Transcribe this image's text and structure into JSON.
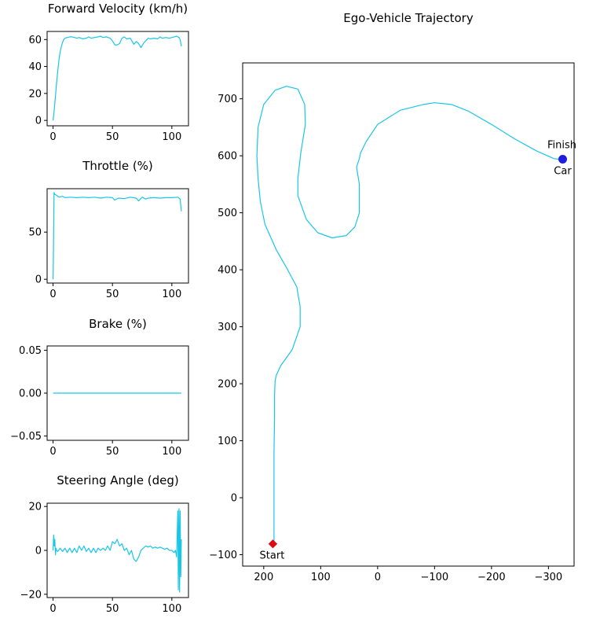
{
  "chart_data": [
    {
      "type": "line",
      "title": "Forward Velocity (km/h)",
      "color": "#1ac6e6",
      "xlim": [
        -5,
        114
      ],
      "ylim": [
        -4,
        66
      ],
      "xticks": [
        0,
        50,
        100
      ],
      "yticks": [
        0,
        20,
        40,
        60
      ],
      "ytick_labels": [
        "0",
        "20",
        "40",
        "60"
      ],
      "x": [
        0,
        1,
        2,
        3,
        4,
        5,
        6,
        7,
        8,
        9,
        10,
        12,
        14,
        16,
        18,
        20,
        22,
        25,
        28,
        30,
        32,
        35,
        38,
        40,
        42,
        45,
        48,
        50,
        52,
        54,
        56,
        58,
        60,
        62,
        65,
        68,
        70,
        72,
        74,
        76,
        78,
        80,
        82,
        85,
        88,
        90,
        92,
        95,
        98,
        100,
        102,
        104,
        106,
        107,
        108
      ],
      "values": [
        0,
        8,
        18,
        28,
        37,
        45,
        51,
        55,
        58,
        60,
        61,
        61.5,
        62,
        62,
        61.5,
        61,
        61.5,
        60.5,
        61,
        62,
        61,
        61.5,
        62,
        62.5,
        61.5,
        62,
        61,
        59,
        56,
        56,
        57,
        61,
        62,
        60.5,
        61,
        56.5,
        58.5,
        57,
        54,
        57,
        59,
        61,
        60.5,
        61,
        60.5,
        62,
        61,
        61.5,
        61,
        61.5,
        62,
        62.5,
        61.5,
        60,
        55
      ]
    },
    {
      "type": "line",
      "title": "Throttle (%)",
      "color": "#1ac6e6",
      "xlim": [
        -5,
        114
      ],
      "ylim": [
        -4,
        96
      ],
      "xticks": [
        0,
        50,
        100
      ],
      "yticks": [
        0,
        50
      ],
      "ytick_labels": [
        "0",
        "50"
      ],
      "x": [
        0,
        0.3,
        0.8,
        1.5,
        3,
        5,
        8,
        10,
        15,
        20,
        25,
        30,
        35,
        40,
        45,
        50,
        52,
        55,
        60,
        65,
        70,
        72,
        75,
        78,
        80,
        85,
        90,
        95,
        100,
        105,
        107,
        108
      ],
      "values": [
        0,
        25,
        92,
        90,
        89,
        87,
        88,
        86.5,
        87,
        86.5,
        87,
        86.5,
        87,
        86,
        87,
        86.5,
        84,
        86,
        85.5,
        87,
        86,
        83,
        87,
        85,
        86,
        86.5,
        86,
        86.5,
        86.5,
        87,
        85,
        72
      ]
    },
    {
      "type": "line",
      "title": "Brake (%)",
      "color": "#1ac6e6",
      "xlim": [
        -5,
        114
      ],
      "ylim": [
        -0.055,
        0.055
      ],
      "xticks": [
        0,
        50,
        100
      ],
      "yticks": [
        0.05,
        0,
        -0.05
      ],
      "ytick_labels": [
        "0.05",
        "0.00",
        "−0.05"
      ],
      "x": [
        0,
        108
      ],
      "values": [
        0,
        0
      ]
    },
    {
      "type": "line",
      "title": "Steering Angle (deg)",
      "color": "#1ac6e6",
      "xlim": [
        -5,
        114
      ],
      "ylim": [
        -21.5,
        21.5
      ],
      "xticks": [
        0,
        50,
        100
      ],
      "yticks": [
        20,
        0,
        -20
      ],
      "ytick_labels": [
        "20",
        "0",
        "−20"
      ],
      "x": [
        0,
        0.5,
        1,
        1.5,
        2,
        2.5,
        3,
        4,
        6,
        8,
        10,
        12,
        14,
        16,
        18,
        20,
        22,
        24,
        26,
        28,
        30,
        32,
        34,
        36,
        38,
        40,
        42,
        44,
        46,
        48,
        50,
        52,
        54,
        56,
        58,
        60,
        62,
        64,
        66,
        68,
        70,
        72,
        74,
        76,
        78,
        80,
        82,
        84,
        86,
        88,
        90,
        92,
        94,
        96,
        98,
        100,
        102,
        103,
        104,
        105,
        105.5,
        106,
        106.5,
        107,
        107.5,
        108
      ],
      "values": [
        0,
        7,
        2,
        5,
        -2,
        1,
        0,
        -0.5,
        1,
        -0.5,
        1,
        -1,
        1,
        -1,
        1,
        -1,
        2,
        0,
        2,
        -0.5,
        1,
        -1,
        1,
        -1,
        1,
        0,
        1,
        0,
        2,
        0,
        4,
        3,
        5,
        2,
        3,
        0,
        1,
        -2,
        0,
        -4,
        -5,
        -3,
        0,
        1,
        2,
        1.5,
        2,
        1,
        1.5,
        1,
        1.5,
        1,
        0.5,
        1,
        0,
        0,
        -1,
        0,
        -3,
        18,
        -18,
        19,
        -19,
        18,
        -12,
        5
      ]
    },
    {
      "type": "line",
      "title": "Ego-Vehicle Trajectory",
      "color": "#1ac6e6",
      "xlim": [
        237,
        -345
      ],
      "ylim": [
        -120,
        763
      ],
      "x_inverted": true,
      "xticks": [
        200,
        100,
        0,
        -100,
        -200,
        -300
      ],
      "xtick_labels": [
        "200",
        "100",
        "0",
        "−100",
        "−200",
        "−300"
      ],
      "yticks": [
        700,
        600,
        500,
        400,
        300,
        200,
        100,
        0,
        -100
      ],
      "ytick_labels": [
        "700",
        "600",
        "500",
        "400",
        "300",
        "200",
        "100",
        "0",
        "−100"
      ],
      "x": [
        182,
        182,
        182,
        182,
        181,
        181,
        180,
        178,
        170,
        150,
        136,
        136,
        142,
        158,
        178,
        198,
        206,
        210,
        212,
        210,
        200,
        180,
        160,
        140,
        128,
        127,
        135,
        140,
        140,
        125,
        105,
        80,
        55,
        40,
        32,
        32,
        37,
        32,
        30,
        20,
        0,
        -40,
        -80,
        -100,
        -130,
        -160,
        -200,
        -240,
        -280,
        -310,
        -318,
        -325
      ],
      "y": [
        -80,
        -30,
        20,
        80,
        140,
        180,
        205,
        215,
        232,
        260,
        300,
        335,
        370,
        400,
        435,
        480,
        520,
        560,
        600,
        650,
        690,
        715,
        722,
        717,
        690,
        655,
        605,
        560,
        530,
        488,
        465,
        456,
        460,
        475,
        500,
        550,
        580,
        595,
        605,
        625,
        655,
        680,
        690,
        693,
        690,
        678,
        655,
        630,
        608,
        595,
        594,
        594
      ],
      "start_marker": {
        "x": 184,
        "y": -81,
        "color": "#dd0b11"
      },
      "car_marker": {
        "x": -325,
        "y": 594,
        "color": "#1e1edc"
      }
    }
  ],
  "annotations": {
    "start": "Start",
    "finish": "Finish",
    "car": "Car"
  }
}
